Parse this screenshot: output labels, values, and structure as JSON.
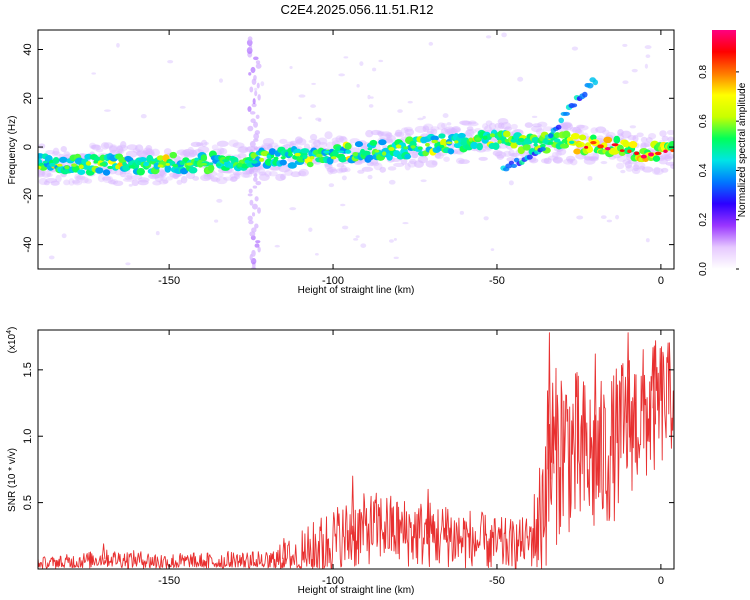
{
  "title": "C2E4.2025.056.11.51.R12",
  "chart_data": [
    {
      "type": "heatmap",
      "xlabel": "Height of straight line (km)",
      "ylabel": "Frequency (Hz)",
      "xlim": [
        -190,
        4
      ],
      "ylim": [
        -50,
        48
      ],
      "x_ticks": [
        {
          "value": -150,
          "label": "-150"
        },
        {
          "value": -100,
          "label": "-100"
        },
        {
          "value": -50,
          "label": "-50"
        },
        {
          "value": 0,
          "label": "0"
        }
      ],
      "y_ticks": [
        {
          "value": -40,
          "label": "-40"
        },
        {
          "value": -20,
          "label": "-20"
        },
        {
          "value": 0,
          "label": "0"
        },
        {
          "value": 20,
          "label": "20"
        },
        {
          "value": 40,
          "label": "40"
        }
      ],
      "colorbar": {
        "label": "Normalized spectral amplitude",
        "range": [
          0,
          0.97
        ],
        "ticks": [
          {
            "value": 0.0,
            "label": "0.0"
          },
          {
            "value": 0.2,
            "label": "0.2"
          },
          {
            "value": 0.4,
            "label": "0.4"
          },
          {
            "value": 0.6,
            "label": "0.6"
          },
          {
            "value": 0.8,
            "label": "0.8"
          }
        ],
        "colors": [
          "#ffffff",
          "#e6c8ff",
          "#9a36ff",
          "#2c00ff",
          "#0077ff",
          "#00e5e5",
          "#00ff5a",
          "#c8ff00",
          "#ffff00",
          "#ff7a00",
          "#ff0000",
          "#ff0080"
        ]
      },
      "ridge": {
        "x": [
          -190,
          -175,
          -160,
          -145,
          -130,
          -115,
          -100,
          -90,
          -80,
          -70,
          -60,
          -55,
          -50,
          -45,
          -40,
          -35,
          -30,
          -25,
          -20,
          -15,
          -10,
          -5,
          0,
          4
        ],
        "y": [
          -7,
          -7,
          -7,
          -6.5,
          -6,
          -4.5,
          -3,
          -2,
          -1,
          1,
          2,
          3,
          3.5,
          1.5,
          1.5,
          2,
          2,
          1.5,
          1,
          0.5,
          -1,
          -3,
          -2,
          -1
        ]
      },
      "secondary_branch": {
        "x": [
          -48,
          -42,
          -36,
          -30,
          -25,
          -20
        ],
        "y": [
          -8,
          -5,
          0,
          12,
          20,
          28
        ]
      },
      "vertical_streak": {
        "x": -124,
        "y_range": [
          -50,
          45
        ]
      }
    },
    {
      "type": "line",
      "xlabel": "Height of straight line (km)",
      "ylabel": "SNR (10 * v/v)",
      "multiplier_label": "(x10",
      "multiplier_exp": "4",
      "multiplier_close": ")",
      "xlim": [
        -190,
        4
      ],
      "ylim": [
        0,
        1.8
      ],
      "x_ticks": [
        {
          "value": -150,
          "label": "-150"
        },
        {
          "value": -100,
          "label": "-100"
        },
        {
          "value": -50,
          "label": "-50"
        },
        {
          "value": 0,
          "label": "0"
        }
      ],
      "y_ticks": [
        {
          "value": 0.5,
          "label": "0.5"
        },
        {
          "value": 1.0,
          "label": "1.0"
        },
        {
          "value": 1.5,
          "label": "1.5"
        }
      ],
      "line_color": "#e83030",
      "envelope": {
        "x": [
          -190,
          -180,
          -170,
          -160,
          -150,
          -140,
          -130,
          -120,
          -110,
          -100,
          -90,
          -85,
          -80,
          -70,
          -60,
          -50,
          -45,
          -40,
          -37,
          -35,
          -30,
          -25,
          -20,
          -15,
          -10,
          -5,
          0,
          4
        ],
        "y": [
          0.03,
          0.05,
          0.08,
          0.07,
          0.05,
          0.05,
          0.06,
          0.05,
          0.1,
          0.2,
          0.3,
          0.32,
          0.28,
          0.26,
          0.22,
          0.18,
          0.18,
          0.22,
          0.35,
          0.7,
          0.95,
          0.85,
          0.8,
          0.9,
          1.1,
          1.15,
          1.25,
          1.3
        ]
      },
      "spread": {
        "x": [
          -190,
          -120,
          -100,
          -60,
          -40,
          -35,
          -20,
          0,
          4
        ],
        "y": [
          0.06,
          0.08,
          0.28,
          0.25,
          0.18,
          0.7,
          0.6,
          0.5,
          0.4
        ]
      },
      "peaks": {
        "x": [
          -170,
          -115,
          -94,
          -71,
          -65,
          -34,
          -33,
          -20,
          -10,
          -2
        ],
        "y": [
          0.19,
          0.23,
          0.7,
          0.6,
          0.45,
          1.78,
          1.4,
          1.62,
          1.78,
          1.68
        ]
      }
    }
  ]
}
